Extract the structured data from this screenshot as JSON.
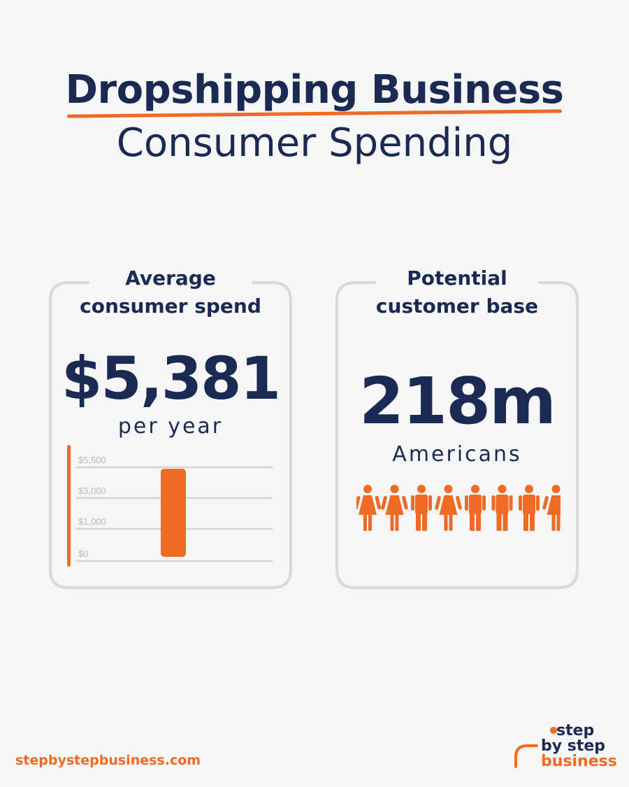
{
  "header": {
    "title": "Dropshipping Business",
    "subtitle": "Consumer Spending"
  },
  "spend_card": {
    "title_line1": "Average",
    "title_line2": "consumer spend",
    "value": "$5,381",
    "caption": "per year"
  },
  "base_card": {
    "title_line1": "Potential",
    "title_line2": "customer base",
    "value": "218m",
    "caption": "Americans",
    "people_icons": [
      "female-icon",
      "female-icon",
      "male-icon",
      "female-icon",
      "male-icon",
      "male-icon",
      "male-icon",
      "female-icon"
    ]
  },
  "chart_data": {
    "type": "bar",
    "categories": [
      ""
    ],
    "values": [
      5381
    ],
    "tick_labels": [
      "$0",
      "$1,000",
      "$3,000",
      "$5,500"
    ],
    "grid": true,
    "bar_color": "#ef6a24"
  },
  "footer": {
    "url": "stepbystepbusiness.com",
    "logo_line1": "step",
    "logo_line2": "by step",
    "logo_line3": "business"
  },
  "colors": {
    "navy": "#1b2a52",
    "orange": "#ef6a24",
    "card_border": "#d9d9d9",
    "background": "#f6f6f6"
  }
}
